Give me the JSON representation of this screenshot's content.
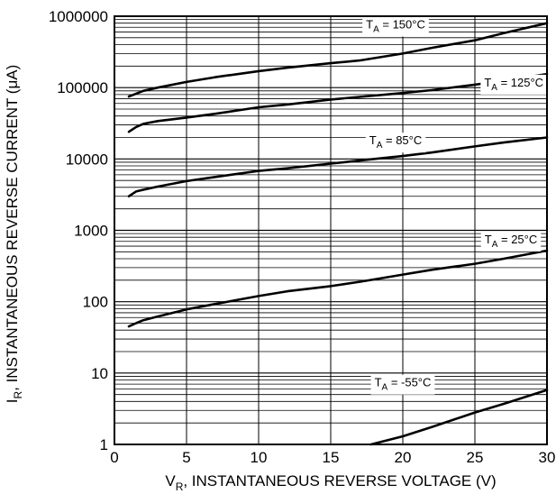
{
  "chart_data": {
    "type": "line",
    "xlabel_main": "V",
    "xlabel_sub": "R",
    "xlabel_rest": ", INSTANTANEOUS REVERSE VOLTAGE (V)",
    "ylabel_main": "I",
    "ylabel_sub": "R",
    "ylabel_rest": ", INSTANTANEOUS REVERSE CURRENT (μA)",
    "xlim": [
      0,
      30
    ],
    "ylim": [
      1,
      1000000
    ],
    "yscale": "log",
    "grid": true,
    "x_ticks": [
      0,
      5,
      10,
      15,
      20,
      25,
      30
    ],
    "x_tick_labels": [
      "0",
      "5",
      "10",
      "15",
      "20",
      "25",
      "30"
    ],
    "y_ticks": [
      1,
      10,
      100,
      1000,
      10000,
      100000,
      1000000
    ],
    "y_tick_labels": [
      "1",
      "10",
      "100",
      "1000",
      "10000",
      "100000",
      "1000000"
    ],
    "series": [
      {
        "label_main": "T",
        "label_sub": "A",
        "label_rest": " = 150°C",
        "label_at": [
          19.5,
          780000
        ],
        "x": [
          1,
          2,
          3,
          5,
          7,
          10,
          12,
          15,
          17,
          20,
          22,
          25,
          27,
          30
        ],
        "y": [
          75000,
          90000,
          100000,
          120000,
          140000,
          170000,
          190000,
          220000,
          240000,
          300000,
          360000,
          460000,
          580000,
          800000
        ]
      },
      {
        "label_main": "T",
        "label_sub": "A",
        "label_rest": " = 125°C",
        "label_at": [
          27.7,
          120000
        ],
        "x": [
          1,
          1.5,
          2,
          3,
          5,
          7,
          10,
          12,
          15,
          17,
          20,
          22,
          25,
          27,
          30
        ],
        "y": [
          24000,
          28000,
          31000,
          34000,
          38000,
          43000,
          53000,
          58000,
          68000,
          74000,
          84000,
          92000,
          110000,
          125000,
          155000
        ]
      },
      {
        "label_main": "T",
        "label_sub": "A",
        "label_rest": " = 85°C",
        "label_at": [
          19.5,
          18500
        ],
        "x": [
          1,
          1.5,
          2,
          3,
          5,
          7,
          10,
          12,
          15,
          17,
          20,
          22,
          25,
          27,
          30
        ],
        "y": [
          3000,
          3500,
          3700,
          4100,
          4900,
          5600,
          6800,
          7400,
          8600,
          9500,
          11000,
          12300,
          15000,
          17000,
          20000
        ]
      },
      {
        "label_main": "T",
        "label_sub": "A",
        "label_rest": " = 25°C",
        "label_at": [
          27.5,
          760
        ],
        "x": [
          1,
          1.5,
          2,
          3,
          5,
          7,
          10,
          12,
          15,
          17,
          18,
          20,
          22,
          25,
          27,
          30
        ],
        "y": [
          45,
          50,
          55,
          62,
          78,
          93,
          120,
          140,
          165,
          190,
          205,
          240,
          280,
          340,
          400,
          520
        ]
      },
      {
        "label_main": "T",
        "label_sub": "A",
        "label_rest": " = -55°C",
        "label_at": [
          20,
          7.5
        ],
        "x": [
          17.8,
          20,
          22,
          25,
          27,
          30
        ],
        "y": [
          1.0,
          1.3,
          1.75,
          2.8,
          3.7,
          5.8
        ]
      }
    ]
  }
}
